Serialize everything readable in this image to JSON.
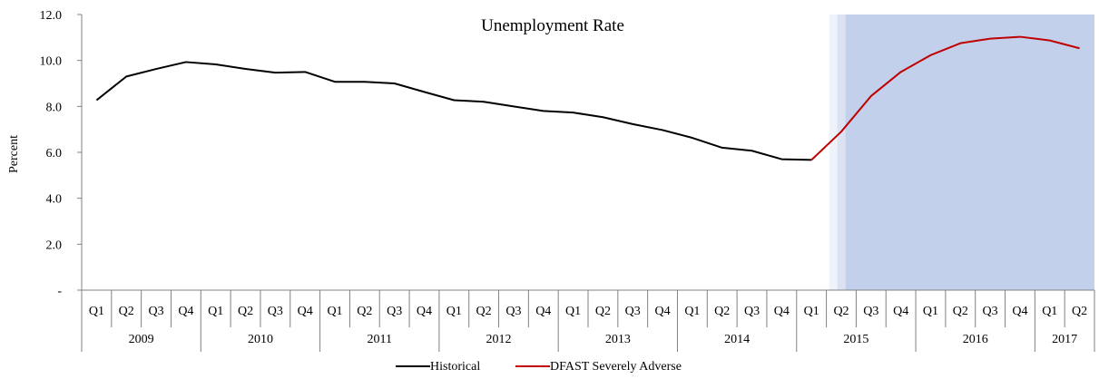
{
  "chart_data": {
    "type": "line",
    "title": "Unemployment Rate",
    "ylabel": "Percent",
    "xlabel": "",
    "ylim": [
      0,
      12
    ],
    "y_ticks": [
      "-",
      "2.0",
      "4.0",
      "6.0",
      "8.0",
      "10.0",
      "12.0"
    ],
    "quarters": [
      "Q1",
      "Q2",
      "Q3",
      "Q4",
      "Q1",
      "Q2",
      "Q3",
      "Q4",
      "Q1",
      "Q2",
      "Q3",
      "Q4",
      "Q1",
      "Q2",
      "Q3",
      "Q4",
      "Q1",
      "Q2",
      "Q3",
      "Q4",
      "Q1",
      "Q2",
      "Q3",
      "Q4",
      "Q1",
      "Q2",
      "Q3",
      "Q4",
      "Q1",
      "Q2",
      "Q3",
      "Q4",
      "Q1",
      "Q2"
    ],
    "years": [
      {
        "label": "2009",
        "span": 4
      },
      {
        "label": "2010",
        "span": 4
      },
      {
        "label": "2011",
        "span": 4
      },
      {
        "label": "2012",
        "span": 4
      },
      {
        "label": "2013",
        "span": 4
      },
      {
        "label": "2014",
        "span": 4
      },
      {
        "label": "2015",
        "span": 4
      },
      {
        "label": "2016",
        "span": 4
      },
      {
        "label": "2017",
        "span": 2
      }
    ],
    "shaded_region": {
      "start_quarter": "2015 Q2",
      "end_quarter": "2017 Q2",
      "color": "#c2d0ec"
    },
    "series": [
      {
        "name": "Historical",
        "color": "#000000",
        "start_index": 0,
        "values": [
          8.27,
          9.3,
          9.63,
          9.93,
          9.83,
          9.63,
          9.47,
          9.5,
          9.07,
          9.07,
          9.0,
          8.63,
          8.27,
          8.2,
          8.0,
          7.8,
          7.73,
          7.53,
          7.23,
          6.97,
          6.63,
          6.2,
          6.07,
          5.7,
          5.67
        ]
      },
      {
        "name": "DFAST Severely Adverse",
        "color": "#c00000",
        "start_index": 24,
        "values": [
          5.67,
          6.9,
          8.45,
          9.5,
          10.23,
          10.75,
          10.95,
          11.03,
          10.87,
          10.53
        ]
      }
    ],
    "grid": false,
    "legend_position": "bottom-center"
  }
}
